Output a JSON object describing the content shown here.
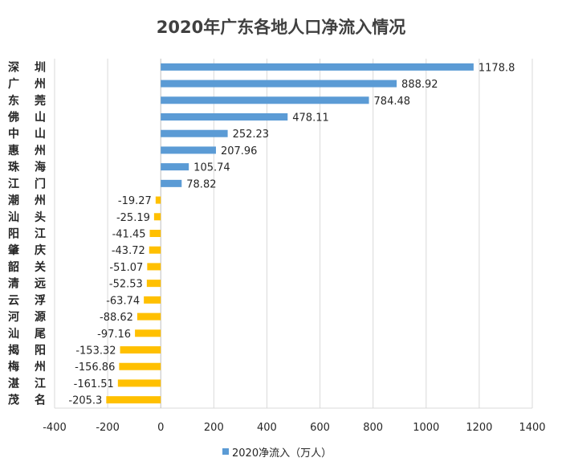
{
  "chart_data": {
    "type": "bar",
    "orientation": "horizontal",
    "title": "2020年广东各地人口净流入情况",
    "categories": [
      "深 圳",
      "广 州",
      "东 莞",
      "佛 山",
      "中 山",
      "惠 州",
      "珠 海",
      "江 门",
      "潮 州",
      "汕 头",
      "阳 江",
      "肇 庆",
      "韶 关",
      "清 远",
      "云 浮",
      "河 源",
      "汕 尾",
      "揭 阳",
      "梅 州",
      "湛 江",
      "茂 名"
    ],
    "series": [
      {
        "name": "2020净流入（万人）",
        "values": [
          1178.8,
          888.92,
          784.48,
          478.11,
          252.23,
          207.96,
          105.74,
          78.82,
          -19.27,
          -25.19,
          -41.45,
          -43.72,
          -51.07,
          -52.53,
          -63.74,
          -88.62,
          -97.16,
          -153.32,
          -156.86,
          -161.51,
          -205.3
        ]
      }
    ],
    "data_labels": [
      "1178.8",
      "888.92",
      "784.48",
      "478.11",
      "252.23",
      "207.96",
      "105.74",
      "78.82",
      "-19.27",
      "-25.19",
      "-41.45",
      "-43.72",
      "-51.07",
      "-52.53",
      "-63.74",
      "-88.62",
      "-97.16",
      "-153.32",
      "-156.86",
      "-161.51",
      "-205.3"
    ],
    "xlim": [
      -400,
      1400
    ],
    "xticks": [
      "-400",
      "-200",
      "0",
      "200",
      "400",
      "600",
      "800",
      "1000",
      "1200",
      "1400"
    ],
    "grid": true,
    "legend": "bottom",
    "colors": {
      "positive": "#5B9BD5",
      "negative": "#FFC000",
      "grid": "#D9D9D9"
    }
  }
}
